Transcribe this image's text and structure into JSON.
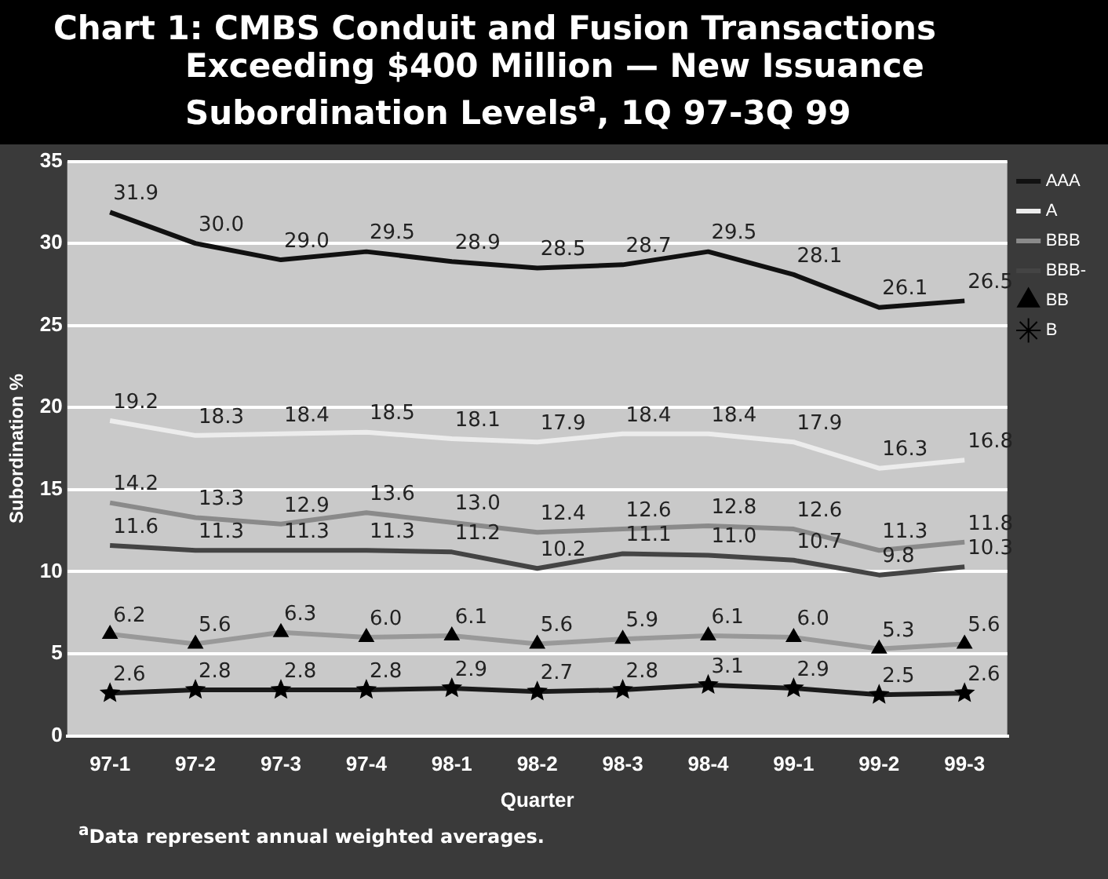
{
  "chart_data": {
    "type": "line",
    "title": "Chart 1: CMBS Conduit and Fusion Transactions Exceeding $400 Million — New Issuance Subordination Levels$^{a}$, 1Q 97-3Q 99",
    "xlabel": "Quarter",
    "ylabel": "Subordination %",
    "categories": [
      "97-1",
      "97-2",
      "97-3",
      "97-4",
      "98-1",
      "98-2",
      "98-3",
      "98-4",
      "99-1",
      "99-2",
      "99-3"
    ],
    "series": [
      {
        "name": "AAA",
        "color": "#111111",
        "marker": "none",
        "values": [
          31.9,
          30.0,
          29.0,
          29.5,
          28.9,
          28.5,
          28.7,
          29.5,
          28.1,
          26.1,
          26.5
        ],
        "value_labels": [
          "31.9",
          "30.0",
          "29.0",
          "29.5",
          "28.9",
          "28.5",
          "28.7",
          "29.5",
          "28.1",
          "26.1",
          "26.5"
        ]
      },
      {
        "name": "A",
        "color": "#ececec",
        "marker": "none",
        "values": [
          19.2,
          18.3,
          18.4,
          18.5,
          18.1,
          17.9,
          18.4,
          18.4,
          17.9,
          16.3,
          16.8
        ],
        "value_labels": [
          "19.2",
          "18.3",
          "18.4",
          "18.5",
          "18.1",
          "17.9",
          "18.4",
          "18.4",
          "17.9",
          "16.3",
          "16.8"
        ]
      },
      {
        "name": "BBB",
        "color": "#8a8a8a",
        "marker": "none",
        "values": [
          14.2,
          13.3,
          12.9,
          13.6,
          13.0,
          12.4,
          12.6,
          12.8,
          12.6,
          11.3,
          11.8
        ],
        "value_labels": [
          "14.2",
          "13.3",
          "12.9",
          "13.6",
          "13.0",
          "12.4",
          "12.6",
          "12.8",
          "12.6",
          "11.3",
          "11.8"
        ]
      },
      {
        "name": "BBB-",
        "color": "#444444",
        "marker": "none",
        "values": [
          11.6,
          11.3,
          11.3,
          11.3,
          11.2,
          10.2,
          11.1,
          11.0,
          10.7,
          9.8,
          10.3
        ],
        "value_labels": [
          "11.6",
          "11.3",
          "11.3",
          "11.3",
          "11.2",
          "10.2",
          "11.1",
          "11.0",
          "10.7",
          "9.8",
          "10.3"
        ]
      },
      {
        "name": "BB",
        "color": "#999999",
        "marker": "triangle",
        "values": [
          6.2,
          5.6,
          6.3,
          6.0,
          6.1,
          5.6,
          5.9,
          6.1,
          6.0,
          5.3,
          5.6
        ],
        "value_labels": [
          "6.2",
          "5.6",
          "6.3",
          "6.0",
          "6.1",
          "5.6",
          "5.9",
          "6.1",
          "6.0",
          "5.3",
          "5.6"
        ]
      },
      {
        "name": "B",
        "color": "#1a1a1a",
        "marker": "star",
        "values": [
          2.6,
          2.8,
          2.8,
          2.8,
          2.9,
          2.7,
          2.8,
          3.1,
          2.9,
          2.5,
          2.6
        ],
        "value_labels": [
          "2.6",
          "2.8",
          "2.8",
          "2.8",
          "2.9",
          "2.7",
          "2.8",
          "3.1",
          "2.9",
          "2.5",
          "2.6"
        ]
      }
    ],
    "ylim": [
      0,
      35
    ],
    "yticks": [
      0,
      5,
      10,
      15,
      20,
      25,
      30,
      35
    ],
    "grid": "y",
    "legend": "right",
    "line_style": "solid",
    "annotations": [
      "$^{a}$Data represent annual weighted averages."
    ]
  }
}
